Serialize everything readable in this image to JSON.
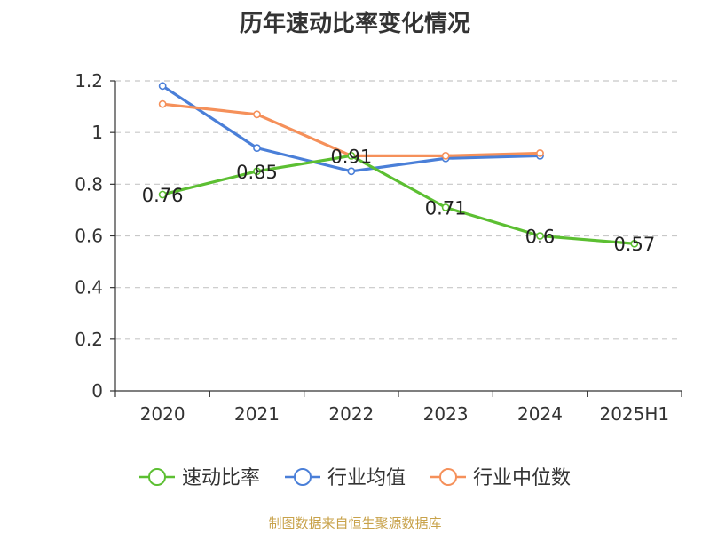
{
  "title": "历年速动比率变化情况",
  "source_note": "制图数据来自恒生聚源数据库",
  "chart_data": {
    "type": "line",
    "title": "历年速动比率变化情况",
    "categories": [
      "2020",
      "2021",
      "2022",
      "2023",
      "2024",
      "2025H1"
    ],
    "ylim": [
      0,
      1.2
    ],
    "yticks": [
      "0",
      "0.2",
      "0.4",
      "0.6",
      "0.8",
      "1",
      "1.2"
    ],
    "grid": true,
    "legend_position": "bottom",
    "series": [
      {
        "name": "速动比率",
        "color": "#5cbf32",
        "values": [
          0.76,
          0.85,
          0.91,
          0.71,
          0.6,
          0.57
        ],
        "labels": [
          "0.76",
          "0.85",
          "0.91",
          "0.71",
          "0.6",
          "0.57"
        ]
      },
      {
        "name": "行业均值",
        "color": "#4a7fd8",
        "values": [
          1.18,
          0.94,
          0.85,
          0.9,
          0.91,
          null
        ]
      },
      {
        "name": "行业中位数",
        "color": "#f5905a",
        "values": [
          1.11,
          1.07,
          0.91,
          0.91,
          0.92,
          null
        ]
      }
    ]
  }
}
